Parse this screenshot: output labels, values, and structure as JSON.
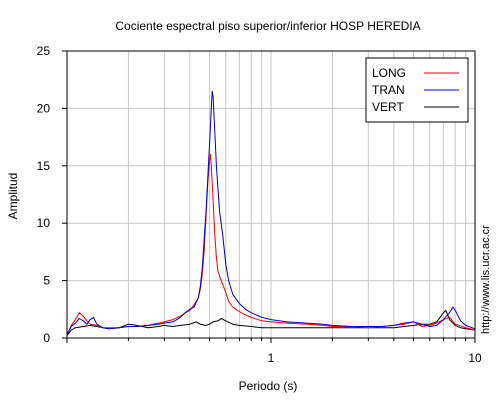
{
  "chart_data": {
    "type": "line",
    "title": "Cociente espectral piso superior/inferior  HOSP HEREDIA",
    "xlabel": "Periodo (s)",
    "ylabel": "Amplitud",
    "x_scale": "log",
    "xlim": [
      0.1,
      10
    ],
    "ylim": [
      0,
      25
    ],
    "x_tick_labels": [
      {
        "value": 1,
        "label": "1"
      },
      {
        "value": 10,
        "label": "10"
      }
    ],
    "y_ticks": [
      0,
      5,
      10,
      15,
      20,
      25
    ],
    "grid": true,
    "legend_position": "top-right",
    "side_text": "http://www.lis.ucr.ac.cr",
    "series": [
      {
        "name": "LONG",
        "color": "#ff0000",
        "points": [
          [
            0.1,
            0.3
          ],
          [
            0.105,
            1.1
          ],
          [
            0.11,
            1.6
          ],
          [
            0.115,
            2.2
          ],
          [
            0.12,
            1.9
          ],
          [
            0.125,
            1.5
          ],
          [
            0.13,
            1.2
          ],
          [
            0.14,
            1.1
          ],
          [
            0.15,
            0.9
          ],
          [
            0.16,
            0.9
          ],
          [
            0.18,
            0.9
          ],
          [
            0.2,
            1.0
          ],
          [
            0.22,
            1.0
          ],
          [
            0.25,
            1.1
          ],
          [
            0.28,
            1.3
          ],
          [
            0.3,
            1.4
          ],
          [
            0.33,
            1.6
          ],
          [
            0.36,
            1.9
          ],
          [
            0.38,
            2.2
          ],
          [
            0.4,
            2.4
          ],
          [
            0.42,
            2.9
          ],
          [
            0.44,
            3.5
          ],
          [
            0.45,
            4.2
          ],
          [
            0.46,
            5.5
          ],
          [
            0.47,
            7.5
          ],
          [
            0.48,
            10.5
          ],
          [
            0.49,
            13.5
          ],
          [
            0.5,
            15.5
          ],
          [
            0.505,
            16.0
          ],
          [
            0.51,
            15.0
          ],
          [
            0.52,
            12.0
          ],
          [
            0.53,
            9.0
          ],
          [
            0.54,
            7.0
          ],
          [
            0.55,
            5.8
          ],
          [
            0.57,
            5.0
          ],
          [
            0.6,
            4.0
          ],
          [
            0.62,
            3.2
          ],
          [
            0.65,
            2.7
          ],
          [
            0.7,
            2.3
          ],
          [
            0.75,
            2.0
          ],
          [
            0.8,
            1.8
          ],
          [
            0.9,
            1.5
          ],
          [
            1.0,
            1.4
          ],
          [
            1.2,
            1.3
          ],
          [
            1.5,
            1.2
          ],
          [
            1.8,
            1.1
          ],
          [
            2.0,
            1.0
          ],
          [
            2.5,
            1.0
          ],
          [
            3.0,
            0.9
          ],
          [
            3.5,
            1.0
          ],
          [
            4.0,
            1.1
          ],
          [
            4.5,
            1.2
          ],
          [
            5.0,
            1.4
          ],
          [
            5.5,
            1.0
          ],
          [
            6.0,
            1.1
          ],
          [
            6.5,
            1.3
          ],
          [
            7.0,
            1.6
          ],
          [
            7.5,
            1.8
          ],
          [
            8.0,
            1.2
          ],
          [
            9.0,
            0.9
          ],
          [
            10.0,
            0.7
          ]
        ]
      },
      {
        "name": "TRAN",
        "color": "#0000cc",
        "points": [
          [
            0.1,
            0.3
          ],
          [
            0.105,
            1.0
          ],
          [
            0.11,
            1.3
          ],
          [
            0.115,
            1.7
          ],
          [
            0.12,
            1.5
          ],
          [
            0.125,
            1.2
          ],
          [
            0.13,
            1.6
          ],
          [
            0.135,
            1.8
          ],
          [
            0.14,
            1.2
          ],
          [
            0.15,
            0.9
          ],
          [
            0.16,
            0.8
          ],
          [
            0.18,
            0.9
          ],
          [
            0.2,
            1.0
          ],
          [
            0.22,
            1.0
          ],
          [
            0.25,
            1.1
          ],
          [
            0.28,
            1.2
          ],
          [
            0.3,
            1.3
          ],
          [
            0.33,
            1.4
          ],
          [
            0.36,
            1.8
          ],
          [
            0.38,
            2.2
          ],
          [
            0.4,
            2.5
          ],
          [
            0.42,
            2.7
          ],
          [
            0.44,
            3.5
          ],
          [
            0.45,
            4.5
          ],
          [
            0.46,
            6.0
          ],
          [
            0.47,
            8.5
          ],
          [
            0.48,
            11.0
          ],
          [
            0.49,
            14.0
          ],
          [
            0.5,
            17.0
          ],
          [
            0.51,
            20.0
          ],
          [
            0.515,
            21.5
          ],
          [
            0.52,
            21.0
          ],
          [
            0.53,
            18.0
          ],
          [
            0.54,
            15.0
          ],
          [
            0.55,
            13.0
          ],
          [
            0.56,
            11.0
          ],
          [
            0.58,
            9.0
          ],
          [
            0.6,
            6.5
          ],
          [
            0.62,
            5.0
          ],
          [
            0.65,
            3.8
          ],
          [
            0.7,
            3.0
          ],
          [
            0.75,
            2.5
          ],
          [
            0.8,
            2.2
          ],
          [
            0.9,
            1.8
          ],
          [
            1.0,
            1.6
          ],
          [
            1.2,
            1.4
          ],
          [
            1.5,
            1.3
          ],
          [
            1.8,
            1.2
          ],
          [
            2.0,
            1.1
          ],
          [
            2.5,
            1.0
          ],
          [
            3.0,
            1.0
          ],
          [
            3.5,
            1.0
          ],
          [
            4.0,
            1.1
          ],
          [
            4.5,
            1.3
          ],
          [
            5.0,
            1.4
          ],
          [
            5.5,
            1.2
          ],
          [
            6.0,
            1.0
          ],
          [
            6.5,
            1.1
          ],
          [
            7.0,
            1.6
          ],
          [
            7.5,
            2.2
          ],
          [
            7.8,
            2.7
          ],
          [
            8.0,
            2.4
          ],
          [
            8.5,
            1.5
          ],
          [
            9.0,
            1.1
          ],
          [
            10.0,
            0.8
          ]
        ]
      },
      {
        "name": "VERT",
        "color": "#000000",
        "points": [
          [
            0.1,
            0.2
          ],
          [
            0.105,
            0.7
          ],
          [
            0.11,
            0.9
          ],
          [
            0.12,
            1.0
          ],
          [
            0.13,
            1.1
          ],
          [
            0.14,
            1.0
          ],
          [
            0.15,
            0.9
          ],
          [
            0.16,
            0.8
          ],
          [
            0.18,
            0.9
          ],
          [
            0.2,
            1.2
          ],
          [
            0.22,
            1.1
          ],
          [
            0.25,
            0.9
          ],
          [
            0.28,
            1.0
          ],
          [
            0.3,
            1.1
          ],
          [
            0.33,
            1.0
          ],
          [
            0.36,
            1.1
          ],
          [
            0.4,
            1.2
          ],
          [
            0.43,
            1.4
          ],
          [
            0.45,
            1.2
          ],
          [
            0.48,
            1.1
          ],
          [
            0.5,
            1.2
          ],
          [
            0.52,
            1.4
          ],
          [
            0.55,
            1.5
          ],
          [
            0.57,
            1.7
          ],
          [
            0.6,
            1.5
          ],
          [
            0.65,
            1.2
          ],
          [
            0.7,
            1.1
          ],
          [
            0.8,
            1.0
          ],
          [
            0.9,
            0.9
          ],
          [
            1.0,
            0.9
          ],
          [
            1.2,
            0.9
          ],
          [
            1.5,
            0.9
          ],
          [
            2.0,
            0.9
          ],
          [
            2.5,
            0.9
          ],
          [
            3.0,
            0.9
          ],
          [
            3.5,
            0.9
          ],
          [
            4.0,
            0.9
          ],
          [
            4.5,
            1.0
          ],
          [
            5.0,
            1.1
          ],
          [
            5.5,
            1.2
          ],
          [
            6.0,
            1.2
          ],
          [
            6.5,
            1.4
          ],
          [
            7.0,
            2.2
          ],
          [
            7.2,
            2.4
          ],
          [
            7.5,
            1.6
          ],
          [
            8.0,
            1.1
          ],
          [
            8.5,
            0.9
          ],
          [
            9.0,
            0.8
          ],
          [
            10.0,
            0.7
          ]
        ]
      }
    ]
  }
}
